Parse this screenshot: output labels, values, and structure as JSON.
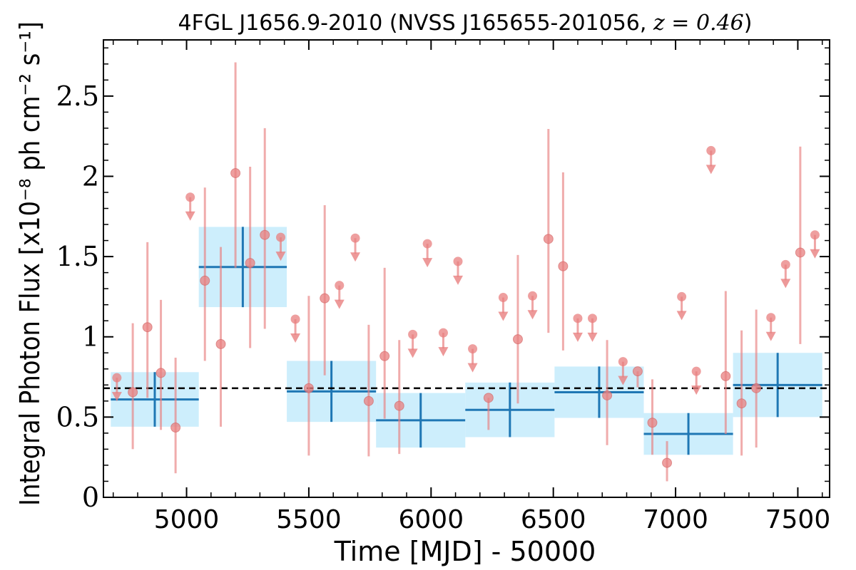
{
  "chart_data": {
    "type": "scatter",
    "title": "4FGL J1656.9-2010 (NVSS J165655-201056, z = 0.46)",
    "title_parts": {
      "main": "4FGL J1656.9-2010 (NVSS J165655-201056, ",
      "math": "z = 0.46",
      "close": ")"
    },
    "xlabel": "Time [MJD] - 50000",
    "ylabel": "Integral Photon Flux [x10⁻⁸ ph cm⁻² s⁻¹]",
    "xlim": [
      4660,
      7630
    ],
    "ylim": [
      0,
      2.85
    ],
    "xticks": [
      5000,
      5500,
      6000,
      6500,
      7000,
      7500
    ],
    "xtick_labels": [
      "5000",
      "5500",
      "6000",
      "6500",
      "7000",
      "7500"
    ],
    "yticks": [
      0,
      0.5,
      1,
      1.5,
      2,
      2.5
    ],
    "ytick_labels": [
      "0",
      "0.5",
      "1",
      "1.5",
      "2",
      "2.5"
    ],
    "mean_flux": 0.68,
    "colors": {
      "points": "#e87f7f",
      "bins": "#1f77b4",
      "bin_fill": "#cdeefc",
      "mean_line": "#000000"
    },
    "points": [
      {
        "x": 4780,
        "y": 0.655,
        "yerr_low": 0.355,
        "yerr_high": 0.43
      },
      {
        "x": 4840,
        "y": 1.06,
        "yerr_low": 0.44,
        "yerr_high": 0.53
      },
      {
        "x": 4895,
        "y": 0.775,
        "yerr_low": 0.355,
        "yerr_high": 0.455
      },
      {
        "x": 4955,
        "y": 0.435,
        "yerr_low": 0.285,
        "yerr_high": 0.435
      },
      {
        "x": 5075,
        "y": 1.35,
        "yerr_low": 0.5,
        "yerr_high": 0.58
      },
      {
        "x": 5140,
        "y": 0.955,
        "yerr_low": 0.515,
        "yerr_high": 0.605
      },
      {
        "x": 5200,
        "y": 2.02,
        "yerr_low": 0.59,
        "yerr_high": 0.69
      },
      {
        "x": 5260,
        "y": 1.46,
        "yerr_low": 0.53,
        "yerr_high": 0.6
      },
      {
        "x": 5320,
        "y": 1.635,
        "yerr_low": 0.585,
        "yerr_high": 0.665
      },
      {
        "x": 5500,
        "y": 0.68,
        "yerr_low": 0.42,
        "yerr_high": 0.575
      },
      {
        "x": 5565,
        "y": 1.24,
        "yerr_low": 0.48,
        "yerr_high": 0.58
      },
      {
        "x": 5745,
        "y": 0.6,
        "yerr_low": 0.345,
        "yerr_high": 0.475
      },
      {
        "x": 5810,
        "y": 0.88,
        "yerr_low": 0.39,
        "yerr_high": 0.55
      },
      {
        "x": 5870,
        "y": 0.57,
        "yerr_low": 0.3,
        "yerr_high": 0.41
      },
      {
        "x": 6235,
        "y": 0.62,
        "yerr_low": 0.2,
        "yerr_high": 0.0
      },
      {
        "x": 6355,
        "y": 0.985,
        "yerr_low": 0.4,
        "yerr_high": 0.525
      },
      {
        "x": 6480,
        "y": 1.61,
        "yerr_low": 0.585,
        "yerr_high": 0.685
      },
      {
        "x": 6540,
        "y": 1.44,
        "yerr_low": 0.525,
        "yerr_high": 0.585
      },
      {
        "x": 6720,
        "y": 0.635,
        "yerr_low": 0.31,
        "yerr_high": 0.345
      },
      {
        "x": 6845,
        "y": 0.785,
        "yerr_low": 0.1,
        "yerr_high": 0.0
      },
      {
        "x": 6905,
        "y": 0.465,
        "yerr_low": 0.2,
        "yerr_high": 0.27
      },
      {
        "x": 6965,
        "y": 0.215,
        "yerr_low": 0.115,
        "yerr_high": 0.135
      },
      {
        "x": 7205,
        "y": 0.755,
        "yerr_low": 0.36,
        "yerr_high": 0.53
      },
      {
        "x": 7270,
        "y": 0.585,
        "yerr_low": 0.325,
        "yerr_high": 0.455
      },
      {
        "x": 7330,
        "y": 0.68,
        "yerr_low": 0.37,
        "yerr_high": 0.49
      },
      {
        "x": 7510,
        "y": 1.525,
        "yerr_low": 0.57,
        "yerr_high": 0.66
      }
    ],
    "upper_limits": [
      {
        "x": 4715,
        "y": 0.745
      },
      {
        "x": 5015,
        "y": 1.87
      },
      {
        "x": 5385,
        "y": 1.62
      },
      {
        "x": 5445,
        "y": 1.11
      },
      {
        "x": 5625,
        "y": 1.32
      },
      {
        "x": 5690,
        "y": 1.615
      },
      {
        "x": 5925,
        "y": 1.015
      },
      {
        "x": 5985,
        "y": 1.58
      },
      {
        "x": 6050,
        "y": 1.025
      },
      {
        "x": 6110,
        "y": 1.47
      },
      {
        "x": 6170,
        "y": 0.925
      },
      {
        "x": 6295,
        "y": 1.245
      },
      {
        "x": 6415,
        "y": 1.255
      },
      {
        "x": 6600,
        "y": 1.115
      },
      {
        "x": 6660,
        "y": 1.115
      },
      {
        "x": 6785,
        "y": 0.845
      },
      {
        "x": 7025,
        "y": 1.25
      },
      {
        "x": 7085,
        "y": 0.785
      },
      {
        "x": 7145,
        "y": 2.16
      },
      {
        "x": 7390,
        "y": 1.12
      },
      {
        "x": 7450,
        "y": 1.45
      },
      {
        "x": 7570,
        "y": 1.635
      }
    ],
    "bins": [
      {
        "x_start": 4690,
        "x_end": 5050,
        "y": 0.61,
        "yerr": 0.17
      },
      {
        "x_start": 5050,
        "x_end": 5410,
        "y": 1.435,
        "yerr": 0.25
      },
      {
        "x_start": 5410,
        "x_end": 5775,
        "y": 0.66,
        "yerr": 0.19
      },
      {
        "x_start": 5775,
        "x_end": 6140,
        "y": 0.48,
        "yerr": 0.17
      },
      {
        "x_start": 6140,
        "x_end": 6505,
        "y": 0.545,
        "yerr": 0.17
      },
      {
        "x_start": 6505,
        "x_end": 6870,
        "y": 0.655,
        "yerr": 0.16
      },
      {
        "x_start": 6870,
        "x_end": 7235,
        "y": 0.395,
        "yerr": 0.13
      },
      {
        "x_start": 7235,
        "x_end": 7600,
        "y": 0.7,
        "yerr": 0.2
      }
    ]
  }
}
